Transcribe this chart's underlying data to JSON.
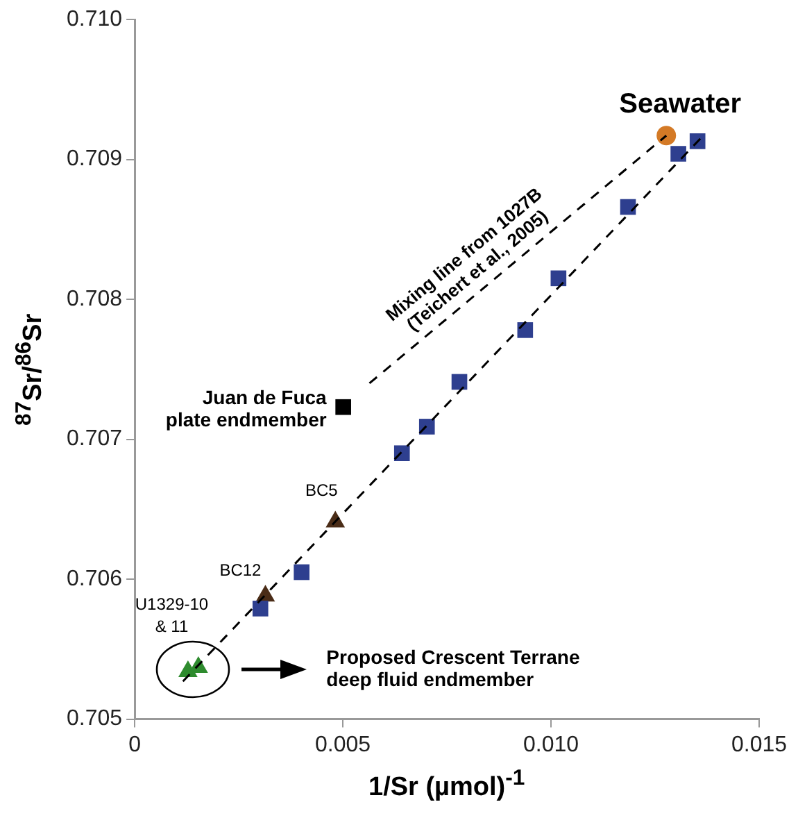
{
  "chart_data": {
    "type": "scatter",
    "xlabel": "1/Sr (µmol)$^{-1}$",
    "ylabel": "$^{87}$Sr/$^{86}$Sr",
    "xlim": [
      0,
      0.015
    ],
    "xticks": [
      0,
      0.005,
      {
        "value": 0.01,
        "label": "0.010"
      },
      0.015
    ],
    "ylim": [
      0.705,
      0.71
    ],
    "yticks": [
      0.705,
      0.706,
      0.707,
      0.708,
      0.709,
      {
        "value": 0.71,
        "label": "0.710"
      }
    ],
    "grid": false,
    "legend": false,
    "series": [
      {
        "type": "line",
        "color": "#000000",
        "marker": "none",
        "line_style": "dashed",
        "x": [
          0.00564,
          0.01277
        ],
        "values": [
          0.7074,
          0.70917
        ]
      },
      {
        "type": "line",
        "color": "#000000",
        "marker": "none",
        "line_style": "dashed",
        "x": [
          0.00116,
          0.01369
        ],
        "values": [
          0.70527,
          0.70918
        ]
      },
      {
        "color": "#2e3f8f",
        "marker": "square",
        "x": [
          0.01352,
          0.01306,
          0.01185,
          0.01018,
          0.00938,
          0.0078,
          0.00702,
          0.00642,
          0.00401,
          0.00302
        ],
        "values": [
          0.70913,
          0.70904,
          0.70866,
          0.70815,
          0.70778,
          0.70741,
          0.70709,
          0.7069,
          0.70605,
          0.70579
        ]
      },
      {
        "color": "#d47a26",
        "marker": "circle",
        "x": [
          0.01277
        ],
        "values": [
          0.70917
        ]
      },
      {
        "color": "#000000",
        "marker": "square",
        "x": [
          0.00501
        ],
        "values": [
          0.70723
        ]
      },
      {
        "color": "#4a2c17",
        "marker": "triangle",
        "x": [
          0.00482,
          0.00314
        ],
        "values": [
          0.70641,
          0.70588
        ]
      },
      {
        "color": "#2e8b2e",
        "marker": "triangle",
        "x": [
          0.00128,
          0.00153
        ],
        "values": [
          0.70534,
          0.70537
        ]
      }
    ],
    "annotations": [
      {
        "text": "Seawater",
        "x": 0.01277,
        "y": 0.70917
      },
      {
        "text": "Mixing line from 1027B (Teichert et al., 2005)",
        "x": 0.0085,
        "y": 0.70811
      },
      {
        "text": "Juan de Fuca plate endmember",
        "x": 0.00501,
        "y": 0.70723
      },
      {
        "text": "BC5",
        "x": 0.00482,
        "y": 0.70641
      },
      {
        "text": "BC12",
        "x": 0.00314,
        "y": 0.70588
      },
      {
        "text": "U1329-10 & 11",
        "x": 0.00139,
        "y": 0.70536
      },
      "Proposed Crescent Terrane deep fluid endmember"
    ]
  }
}
